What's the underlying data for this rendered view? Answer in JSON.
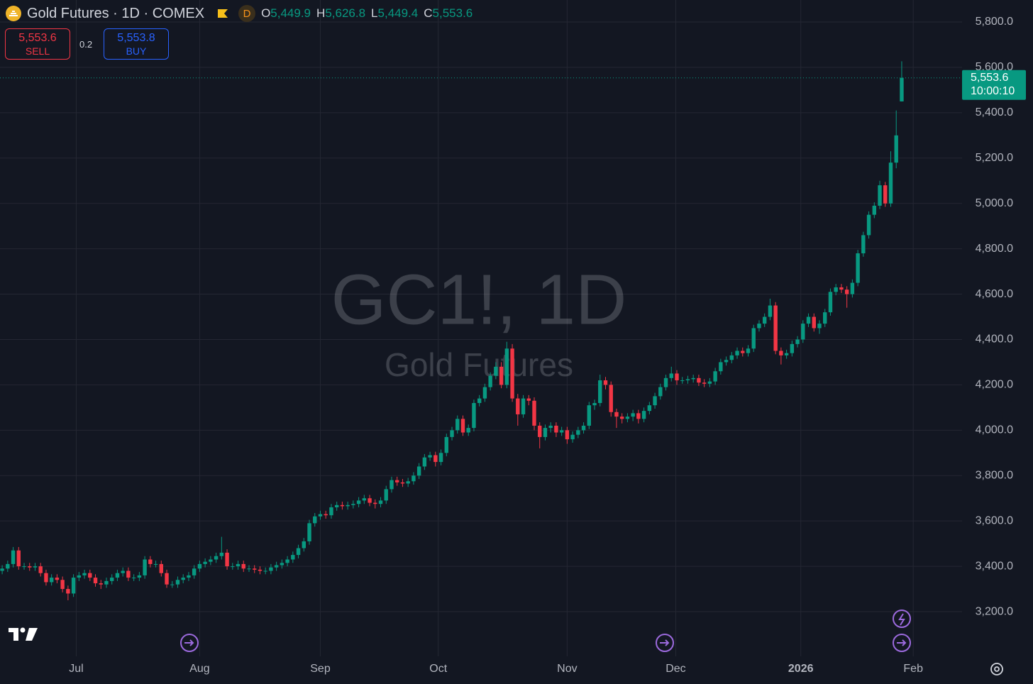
{
  "header": {
    "title": "Gold Futures · 1D · COMEX",
    "interval_badge": "D",
    "ohlc": [
      {
        "label": "O",
        "value": "5,449.9"
      },
      {
        "label": "H",
        "value": "5,626.8"
      },
      {
        "label": "L",
        "value": "5,449.4"
      },
      {
        "label": "C",
        "value": "5,553.6"
      }
    ]
  },
  "trade": {
    "sell_price": "5,553.6",
    "sell_label": "SELL",
    "spread": "0.2",
    "buy_price": "5,553.8",
    "buy_label": "BUY"
  },
  "chart_data": {
    "type": "candlestick",
    "watermark": "GC1!, 1D",
    "watermark_subtitle": "Gold Futures",
    "up_color": "#089981",
    "down_color": "#f23645",
    "grid": true,
    "last_price": {
      "value": 5553.6,
      "label": "5,553.6"
    },
    "countdown": "10:00:10",
    "ylim": [
      3003,
      5897
    ],
    "yticks": [
      {
        "value": 3200,
        "label": "3,200.0"
      },
      {
        "value": 3400,
        "label": "3,400.0"
      },
      {
        "value": 3600,
        "label": "3,600.0"
      },
      {
        "value": 3800,
        "label": "3,800.0"
      },
      {
        "value": 4000,
        "label": "4,000.0"
      },
      {
        "value": 4200,
        "label": "4,200.0"
      },
      {
        "value": 4400,
        "label": "4,400.0"
      },
      {
        "value": 4600,
        "label": "4,600.0"
      },
      {
        "value": 4800,
        "label": "4,800.0"
      },
      {
        "value": 5000,
        "label": "5,000.0"
      },
      {
        "value": 5200,
        "label": "5,200.0"
      },
      {
        "value": 5400,
        "label": "5,400.0"
      },
      {
        "value": 5600,
        "label": "5,600.0"
      },
      {
        "value": 5800,
        "label": "5,800.0"
      }
    ],
    "xlim": [
      -0.4,
      175
    ],
    "xticks": [
      {
        "value": 13.5,
        "label": "Jul"
      },
      {
        "value": 36,
        "label": "Aug"
      },
      {
        "value": 58,
        "label": "Sep"
      },
      {
        "value": 79.5,
        "label": "Oct"
      },
      {
        "value": 103,
        "label": "Nov"
      },
      {
        "value": 122.8,
        "label": "Dec"
      },
      {
        "value": 145.6,
        "label": "2026"
      },
      {
        "value": 166.1,
        "label": "Feb"
      }
    ],
    "open": [
      3380,
      3390,
      3410,
      3470,
      3400,
      3400,
      3395,
      3400,
      3370,
      3330,
      3350,
      3340,
      3300,
      3280,
      3350,
      3360,
      3370,
      3350,
      3325,
      3320,
      3335,
      3350,
      3370,
      3380,
      3350,
      3350,
      3360,
      3430,
      3410,
      3410,
      3370,
      3320,
      3320,
      3340,
      3350,
      3360,
      3390,
      3410,
      3420,
      3430,
      3445,
      3460,
      3400,
      3400,
      3410,
      3390,
      3390,
      3385,
      3380,
      3380,
      3395,
      3405,
      3415,
      3430,
      3450,
      3480,
      3510,
      3590,
      3620,
      3630,
      3625,
      3660,
      3670,
      3665,
      3670,
      3675,
      3690,
      3700,
      3680,
      3675,
      3690,
      3740,
      3780,
      3770,
      3765,
      3775,
      3800,
      3840,
      3880,
      3890,
      3860,
      3900,
      3970,
      4000,
      4050,
      3990,
      4010,
      4120,
      4140,
      4190,
      4240,
      4280,
      4200,
      4360,
      4140,
      4070,
      4140,
      4130,
      4020,
      3970,
      4010,
      4020,
      3990,
      4000,
      3960,
      3980,
      4000,
      4020,
      4110,
      4120,
      4220,
      4200,
      4080,
      4060,
      4050,
      4060,
      4075,
      4050,
      4085,
      4110,
      4150,
      4190,
      4230,
      4250,
      4220,
      4220,
      4225,
      4230,
      4210,
      4205,
      4215,
      4260,
      4300,
      4310,
      4330,
      4350,
      4340,
      4360,
      4450,
      4470,
      4500,
      4550,
      4350,
      4330,
      4340,
      4380,
      4400,
      4470,
      4500,
      4450,
      4470,
      4520,
      4610,
      4630,
      4620,
      4600,
      4650,
      4780,
      4860,
      4950,
      4990,
      5080,
      5000,
      5180,
      5449.9
    ],
    "high": [
      3405,
      3425,
      3485,
      3485,
      3415,
      3415,
      3415,
      3415,
      3385,
      3365,
      3365,
      3355,
      3315,
      3365,
      3375,
      3385,
      3385,
      3365,
      3340,
      3350,
      3365,
      3385,
      3395,
      3395,
      3365,
      3375,
      3445,
      3445,
      3425,
      3425,
      3385,
      3335,
      3355,
      3365,
      3375,
      3405,
      3425,
      3435,
      3445,
      3460,
      3530,
      3475,
      3415,
      3425,
      3425,
      3405,
      3405,
      3400,
      3395,
      3410,
      3420,
      3430,
      3445,
      3465,
      3495,
      3525,
      3605,
      3635,
      3645,
      3645,
      3675,
      3685,
      3685,
      3685,
      3690,
      3705,
      3715,
      3715,
      3695,
      3705,
      3755,
      3795,
      3795,
      3785,
      3790,
      3815,
      3855,
      3895,
      3905,
      3905,
      3915,
      3985,
      4015,
      4065,
      4065,
      4025,
      4135,
      4155,
      4205,
      4255,
      4300,
      4300,
      4390,
      4380,
      4160,
      4155,
      4155,
      4145,
      4035,
      4025,
      4035,
      4035,
      4015,
      4015,
      3995,
      4015,
      4035,
      4125,
      4135,
      4245,
      4235,
      4215,
      4095,
      4075,
      4075,
      4090,
      4090,
      4100,
      4125,
      4165,
      4205,
      4245,
      4280,
      4265,
      4235,
      4240,
      4245,
      4245,
      4225,
      4230,
      4275,
      4315,
      4325,
      4345,
      4365,
      4365,
      4375,
      4465,
      4485,
      4515,
      4580,
      4565,
      4365,
      4355,
      4395,
      4415,
      4485,
      4515,
      4515,
      4485,
      4535,
      4625,
      4645,
      4645,
      4635,
      4665,
      4795,
      4875,
      4965,
      5005,
      5100,
      5095,
      5230,
      5410,
      5626.8
    ],
    "low": [
      3365,
      3375,
      3395,
      3385,
      3385,
      3380,
      3380,
      3355,
      3315,
      3315,
      3325,
      3285,
      3250,
      3265,
      3335,
      3345,
      3335,
      3310,
      3300,
      3305,
      3320,
      3335,
      3355,
      3335,
      3335,
      3335,
      3345,
      3395,
      3395,
      3355,
      3305,
      3305,
      3305,
      3325,
      3335,
      3345,
      3375,
      3395,
      3405,
      3415,
      3430,
      3385,
      3385,
      3385,
      3375,
      3375,
      3370,
      3365,
      3365,
      3365,
      3380,
      3390,
      3400,
      3415,
      3435,
      3465,
      3495,
      3575,
      3605,
      3610,
      3610,
      3645,
      3650,
      3650,
      3655,
      3660,
      3675,
      3665,
      3655,
      3660,
      3675,
      3725,
      3755,
      3750,
      3750,
      3760,
      3785,
      3825,
      3865,
      3840,
      3845,
      3885,
      3955,
      3985,
      3975,
      3975,
      3995,
      4105,
      4125,
      4175,
      4225,
      4185,
      4185,
      4125,
      4020,
      4055,
      4110,
      4000,
      3920,
      3955,
      3990,
      3970,
      3975,
      3940,
      3945,
      3965,
      3985,
      4005,
      4090,
      4105,
      4180,
      4060,
      4010,
      4030,
      4035,
      4040,
      4030,
      4035,
      4070,
      4095,
      4135,
      4175,
      4215,
      4200,
      4205,
      4205,
      4210,
      4195,
      4190,
      4190,
      4200,
      4245,
      4285,
      4295,
      4315,
      4325,
      4325,
      4345,
      4435,
      4455,
      4485,
      4335,
      4290,
      4315,
      4325,
      4365,
      4385,
      4455,
      4435,
      4425,
      4455,
      4505,
      4595,
      4605,
      4540,
      4585,
      4635,
      4765,
      4845,
      4935,
      4975,
      4985,
      4985,
      5155,
      5449.4
    ],
    "close": [
      3390,
      3410,
      3470,
      3400,
      3400,
      3395,
      3400,
      3370,
      3330,
      3350,
      3340,
      3300,
      3280,
      3350,
      3360,
      3370,
      3350,
      3325,
      3320,
      3335,
      3350,
      3370,
      3380,
      3350,
      3350,
      3360,
      3430,
      3410,
      3410,
      3370,
      3320,
      3320,
      3340,
      3350,
      3360,
      3390,
      3410,
      3420,
      3430,
      3445,
      3460,
      3400,
      3400,
      3410,
      3390,
      3390,
      3385,
      3380,
      3380,
      3395,
      3405,
      3415,
      3430,
      3450,
      3480,
      3510,
      3590,
      3620,
      3630,
      3625,
      3660,
      3670,
      3665,
      3670,
      3675,
      3690,
      3700,
      3680,
      3675,
      3690,
      3740,
      3780,
      3770,
      3765,
      3775,
      3800,
      3840,
      3880,
      3890,
      3860,
      3900,
      3970,
      4000,
      4050,
      3990,
      4010,
      4120,
      4140,
      4190,
      4240,
      4280,
      4200,
      4360,
      4140,
      4070,
      4140,
      4130,
      4020,
      3970,
      4010,
      4020,
      3990,
      4000,
      3960,
      3980,
      4000,
      4020,
      4110,
      4120,
      4220,
      4200,
      4080,
      4060,
      4050,
      4060,
      4075,
      4050,
      4085,
      4110,
      4150,
      4190,
      4230,
      4250,
      4220,
      4220,
      4225,
      4230,
      4210,
      4205,
      4215,
      4260,
      4300,
      4310,
      4330,
      4350,
      4340,
      4360,
      4450,
      4470,
      4500,
      4550,
      4350,
      4330,
      4340,
      4380,
      4400,
      4470,
      4500,
      4450,
      4470,
      4520,
      4610,
      4630,
      4620,
      4600,
      4650,
      4780,
      4860,
      4950,
      4990,
      5080,
      5000,
      5180,
      5300,
      5553.6
    ]
  }
}
